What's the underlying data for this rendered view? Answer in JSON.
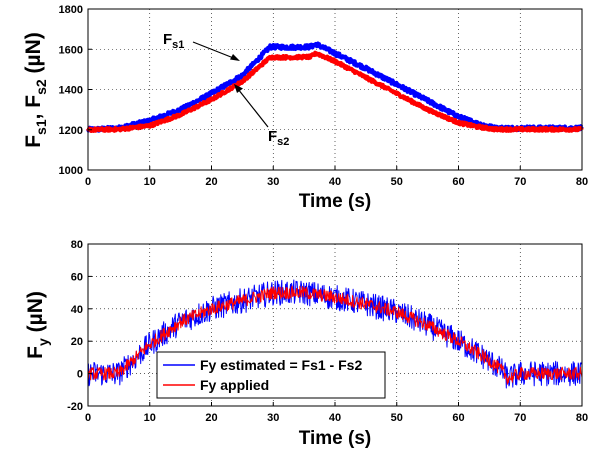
{
  "chart_data": [
    {
      "type": "line",
      "title": "",
      "xlabel": "Time (s)",
      "ylabel": {
        "main": "F",
        "sub1": "s1",
        "sep": ", F",
        "sub2": "s2",
        "unit": " (µN)"
      },
      "xlim": [
        0,
        80
      ],
      "ylim": [
        1000,
        1800
      ],
      "xticks": [
        "0",
        "10",
        "20",
        "30",
        "40",
        "50",
        "60",
        "70",
        "80"
      ],
      "yticks": [
        "1000",
        "1200",
        "1400",
        "1600",
        "1800"
      ],
      "grid": true,
      "legend": "none",
      "series": [
        {
          "name": "",
          "color": "#0000ff",
          "x": [
            0,
            5,
            10,
            15,
            20,
            25,
            29.5,
            33,
            36,
            37,
            40,
            45,
            50,
            55,
            60,
            63,
            66,
            68,
            80
          ],
          "y": [
            1200,
            1208,
            1245,
            1300,
            1380,
            1470,
            1612,
            1610,
            1612,
            1625,
            1580,
            1505,
            1425,
            1345,
            1265,
            1232,
            1208,
            1208,
            1208
          ]
        },
        {
          "name": "",
          "color": "#ff0000",
          "x": [
            0,
            5,
            10,
            15,
            20,
            25,
            29.5,
            33,
            36,
            37,
            40,
            45,
            50,
            55,
            60,
            63,
            66,
            68,
            80
          ],
          "y": [
            1200,
            1202,
            1220,
            1275,
            1350,
            1440,
            1560,
            1560,
            1562,
            1580,
            1540,
            1460,
            1380,
            1300,
            1235,
            1215,
            1202,
            1202,
            1202
          ]
        }
      ],
      "annotations": [
        {
          "main": "F",
          "sub": "s1",
          "at": [
            25.5,
            1516
          ]
        },
        {
          "main": "F",
          "sub": "s2",
          "at": [
            23.5,
            1418
          ]
        }
      ]
    },
    {
      "type": "line",
      "title": "",
      "xlabel": "Time (s)",
      "ylabel": {
        "main": "F",
        "sub": "y",
        "unit": " (µN)"
      },
      "xlim": [
        0,
        80
      ],
      "ylim": [
        -20,
        80
      ],
      "xticks": [
        "0",
        "10",
        "20",
        "30",
        "40",
        "50",
        "60",
        "70",
        "80"
      ],
      "yticks": [
        "-20",
        "0",
        "20",
        "40",
        "60",
        "80"
      ],
      "grid": true,
      "legend": "bottom-left",
      "series": [
        {
          "name": "Fy estimated = Fs1 - Fs2",
          "color": "#0000ff",
          "x": [
            0,
            5,
            10,
            15,
            20,
            25,
            30,
            35,
            40,
            45,
            50,
            55,
            60,
            65,
            67,
            68,
            70,
            75,
            80
          ],
          "y": [
            0,
            0,
            18,
            32,
            40,
            45,
            50,
            50,
            47,
            43,
            38,
            30,
            20,
            8,
            2,
            -3,
            0,
            0,
            0
          ]
        },
        {
          "name": "Fy applied",
          "color": "#ff0000",
          "x": [
            0,
            5,
            10,
            15,
            20,
            25,
            30,
            35,
            40,
            45,
            50,
            55,
            60,
            65,
            67,
            68,
            70,
            75,
            80
          ],
          "y": [
            0,
            0,
            18,
            32,
            40,
            45,
            50,
            50,
            47,
            43,
            38,
            30,
            20,
            8,
            2,
            -3,
            0,
            0,
            0
          ]
        }
      ]
    }
  ]
}
